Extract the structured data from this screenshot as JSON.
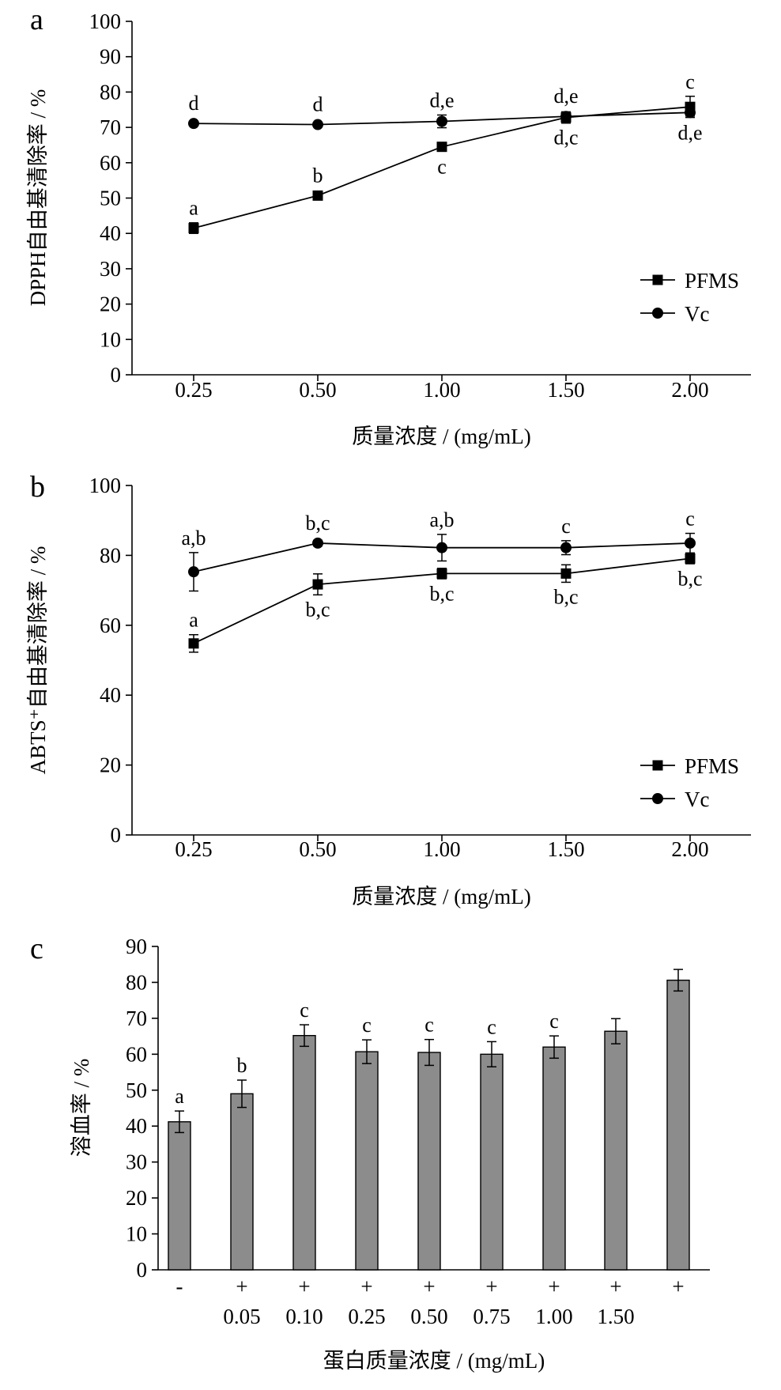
{
  "chart_data": [
    {
      "panel": "a",
      "type": "line",
      "categories": [
        "0.25",
        "0.50",
        "1.00",
        "1.50",
        "2.00"
      ],
      "xlabel": "质量浓度 / (mg/mL)",
      "ylabel": "DPPH自由基清除率 / %",
      "ylim": [
        0,
        100
      ],
      "yticks": [
        0,
        10,
        20,
        30,
        40,
        50,
        60,
        70,
        80,
        90,
        100
      ],
      "legend": "right",
      "series": [
        {
          "name": "PFMS",
          "marker": "square",
          "values": [
            41.5,
            50.7,
            64.5,
            72.8,
            75.8
          ],
          "errors": [
            1.5,
            0.8,
            1.0,
            1.6,
            3.0
          ],
          "labels": [
            "a",
            "b",
            "c",
            "d,c",
            "c"
          ],
          "label_pos": [
            "above",
            "above",
            "below",
            "below",
            "above"
          ]
        },
        {
          "name": "Vc",
          "marker": "circle",
          "values": [
            71.1,
            70.8,
            71.7,
            73.1,
            74.2
          ],
          "errors": [
            0.5,
            0.5,
            1.8,
            1.0,
            1.0
          ],
          "labels": [
            "d",
            "d",
            "d,e",
            "d,e",
            "d,e"
          ],
          "label_pos": [
            "above",
            "above",
            "above",
            "above",
            "below"
          ]
        }
      ]
    },
    {
      "panel": "b",
      "type": "line",
      "categories": [
        "0.25",
        "0.50",
        "1.00",
        "1.50",
        "2.00"
      ],
      "xlabel": "质量浓度 / (mg/mL)",
      "ylabel": "ABTS⁺自由基清除率 / %",
      "ylim": [
        0,
        100
      ],
      "yticks": [
        0,
        20,
        40,
        60,
        80,
        100
      ],
      "legend": "right",
      "series": [
        {
          "name": "PFMS",
          "marker": "square",
          "values": [
            54.8,
            71.7,
            74.8,
            74.8,
            79.1
          ],
          "errors": [
            2.5,
            3.0,
            1.5,
            2.5,
            1.5
          ],
          "labels": [
            "a",
            "b,c",
            "b,c",
            "b,c",
            "b,c"
          ],
          "label_pos": [
            "above",
            "below",
            "below",
            "below",
            "below"
          ]
        },
        {
          "name": "Vc",
          "marker": "circle",
          "values": [
            75.3,
            83.5,
            82.2,
            82.2,
            83.5
          ],
          "errors": [
            5.5,
            0.8,
            3.8,
            2.0,
            2.8
          ],
          "labels": [
            "a,b",
            "b,c",
            "a,b",
            "c",
            "c"
          ],
          "label_pos": [
            "above",
            "above",
            "above",
            "above",
            "above"
          ]
        }
      ]
    },
    {
      "panel": "c",
      "type": "bar",
      "categories": [
        "",
        "0.05",
        "0.10",
        "0.25",
        "0.50",
        "0.75",
        "1.00",
        "1.50",
        ""
      ],
      "signs": [
        "-",
        "+",
        "+",
        "+",
        "+",
        "+",
        "+",
        "+",
        "+"
      ],
      "xlabel": "蛋白质量浓度 / (mg/mL)",
      "ylabel": "溶血率 / %",
      "ylim": [
        0,
        90
      ],
      "yticks": [
        0,
        10,
        20,
        30,
        40,
        50,
        60,
        70,
        80,
        90
      ],
      "bar_color": "#8c8c8c",
      "values": [
        41.2,
        49.0,
        65.2,
        60.7,
        60.5,
        60.0,
        62.0,
        66.4,
        80.6
      ],
      "errors": [
        3.0,
        3.8,
        3.0,
        3.3,
        3.6,
        3.5,
        3.1,
        3.5,
        3.0
      ],
      "labels": [
        "a",
        "b",
        "c",
        "c",
        "c",
        "c",
        "c",
        "",
        ""
      ]
    }
  ]
}
